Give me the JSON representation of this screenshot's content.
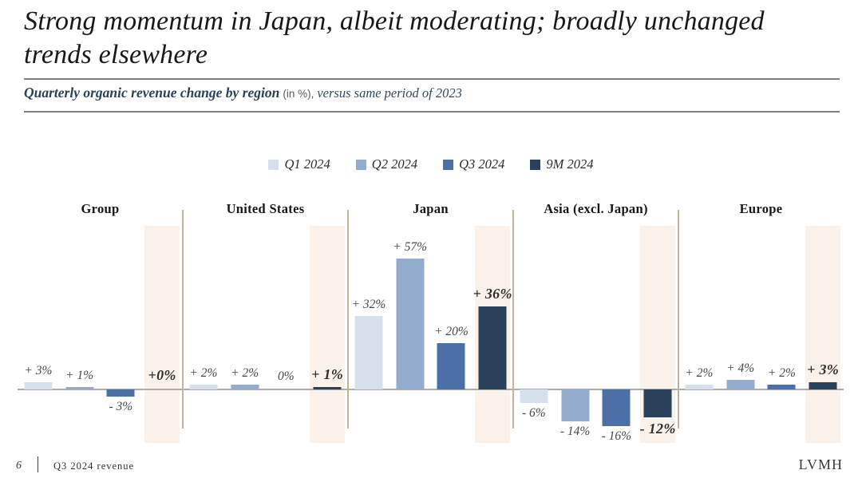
{
  "slide": {
    "title": "Strong momentum in Japan, albeit moderating; broadly unchanged trends elsewhere",
    "footer": {
      "page_number": "6",
      "label": "Q3 2024 revenue",
      "brand": "LVMH"
    }
  },
  "subtitle": {
    "bold": "Quarterly organic revenue change by region",
    "unit": "(in %),",
    "rest": "versus same period of 2023"
  },
  "legend": [
    {
      "label": "Q1 2024",
      "color": "#d6e0ed"
    },
    {
      "label": "Q2 2024",
      "color": "#93abcd"
    },
    {
      "label": "Q3 2024",
      "color": "#4b6fa6"
    },
    {
      "label": "9M 2024",
      "color": "#2b4059"
    }
  ],
  "chart_data": {
    "type": "bar",
    "title": "Quarterly organic revenue change by region (in %), versus same period of 2023",
    "unit": "%",
    "categories": [
      "Group",
      "United States",
      "Japan",
      "Asia (excl. Japan)",
      "Europe"
    ],
    "series": [
      {
        "name": "Q1 2024",
        "color": "#d6e0ed",
        "values": [
          3,
          2,
          32,
          -6,
          2
        ]
      },
      {
        "name": "Q2 2024",
        "color": "#93abcd",
        "values": [
          1,
          2,
          57,
          -14,
          4
        ]
      },
      {
        "name": "Q3 2024",
        "color": "#4b6fa6",
        "values": [
          -3,
          0,
          20,
          -16,
          2
        ]
      },
      {
        "name": "9M 2024",
        "color": "#2b4059",
        "values": [
          0,
          1,
          36,
          -12,
          3
        ]
      }
    ],
    "value_labels": [
      [
        "+ 3%",
        "+ 1%",
        "- 3%",
        "+0%"
      ],
      [
        "+ 2%",
        "+ 2%",
        "0%",
        "+ 1%"
      ],
      [
        "+ 32%",
        "+ 57%",
        "+ 20%",
        "+ 36%"
      ],
      [
        "- 6%",
        "- 14%",
        "- 16%",
        "- 12%"
      ],
      [
        "+ 2%",
        "+ 4%",
        "+ 2%",
        "+ 3%"
      ]
    ],
    "ylim": [
      -23,
      71
    ],
    "grid": false,
    "legend_position": "top",
    "highlight_series": "9M 2024",
    "highlight_band_color": "#faf2ea",
    "axis_color": "#ababab",
    "separator_color": "#c1b299"
  }
}
